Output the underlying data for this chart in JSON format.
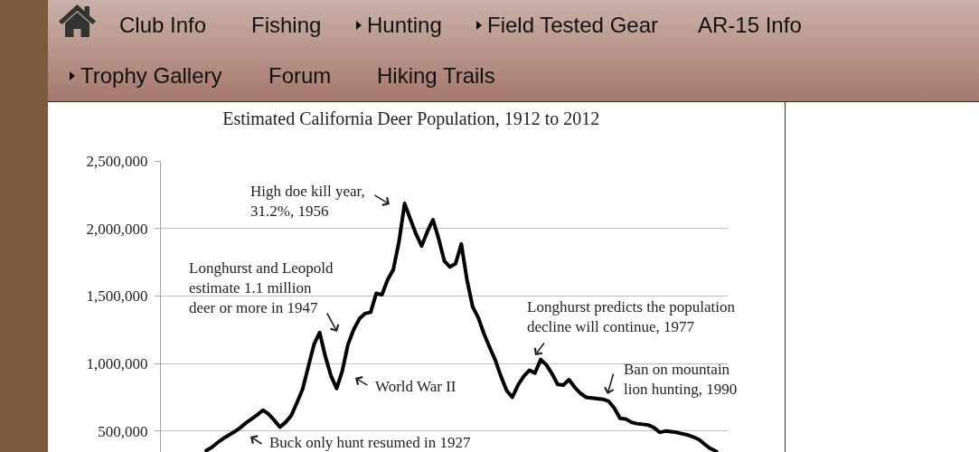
{
  "chart_data": {
    "type": "line",
    "title": "Estimated California Deer Population, 1912 to 2012",
    "categories": [
      null,
      null,
      null,
      null,
      null,
      null,
      null,
      null,
      null,
      null,
      null,
      null,
      null,
      null,
      null,
      null,
      null,
      null,
      null,
      null,
      null,
      null,
      null,
      null,
      null,
      null,
      null,
      null,
      null,
      null,
      null,
      null,
      null,
      null,
      null,
      null,
      null,
      null,
      null,
      null,
      null,
      null,
      null,
      null,
      null,
      null,
      null,
      null,
      null,
      null,
      null,
      null,
      null,
      null,
      null,
      null,
      null,
      null,
      null,
      null,
      null,
      null,
      null,
      null,
      null,
      null,
      null,
      null,
      null,
      null,
      null,
      null,
      null,
      null,
      null,
      null,
      null,
      null,
      null,
      null,
      null,
      null,
      null,
      null,
      null,
      null,
      null,
      null,
      null,
      null,
      null,
      null,
      null,
      null,
      null,
      null,
      null,
      null,
      null,
      null,
      null
    ],
    "series": [
      {
        "color": "#000000",
        "values": [
          null,
          null,
          null,
          null,
          null,
          null,
          null,
          null,
          355000,
          380000,
          415000,
          445000,
          470000,
          495000,
          525000,
          560000,
          590000,
          620000,
          655000,
          625000,
          580000,
          530000,
          565000,
          615000,
          710000,
          810000,
          975000,
          1140000,
          1230000,
          1055000,
          910000,
          815000,
          945000,
          1140000,
          1250000,
          1330000,
          1370000,
          1380000,
          1520000,
          1510000,
          1620000,
          1695000,
          1900000,
          2185000,
          2070000,
          1960000,
          1870000,
          1975000,
          2065000,
          1925000,
          1760000,
          1715000,
          1740000,
          1885000,
          1620000,
          1420000,
          1340000,
          1220000,
          1120000,
          1025000,
          905000,
          800000,
          750000,
          840000,
          905000,
          950000,
          930000,
          1030000,
          990000,
          925000,
          845000,
          840000,
          880000,
          825000,
          780000,
          750000,
          745000,
          740000,
          735000,
          720000,
          670000,
          595000,
          590000,
          565000,
          555000,
          550000,
          545000,
          525000,
          490000,
          500000,
          495000,
          490000,
          480000,
          470000,
          455000,
          435000,
          400000,
          370000,
          350000,
          null,
          null
        ]
      }
    ],
    "ylim": [
      345000,
      2500000
    ],
    "yticks": [
      {
        "value": 500000,
        "label": "500,000"
      },
      {
        "value": 1000000,
        "label": "1,000,000"
      },
      {
        "value": 1500000,
        "label": "1,500,000"
      },
      {
        "value": 2000000,
        "label": "2,000,000"
      },
      {
        "value": 2500000,
        "label": "2,500,000"
      }
    ],
    "grid": "y",
    "line_style": "solid",
    "annotations": [
      "Club Info",
      "Fishing",
      "Hunting",
      "Field Tested Gear",
      "AR-15 Info",
      "Trophy Gallery",
      "Forum",
      "Hiking Trails",
      "High doe kill year,\n31.2%, 1956",
      "Longhurst and Leopold\nestimate 1.1 million\ndeer or more in 1947",
      "World War II",
      "Longhurst predicts the population\ndecline will continue, 1977",
      "Ban on mountain\nlion hunting, 1990",
      "Buck only hunt resumed in 1927"
    ]
  }
}
